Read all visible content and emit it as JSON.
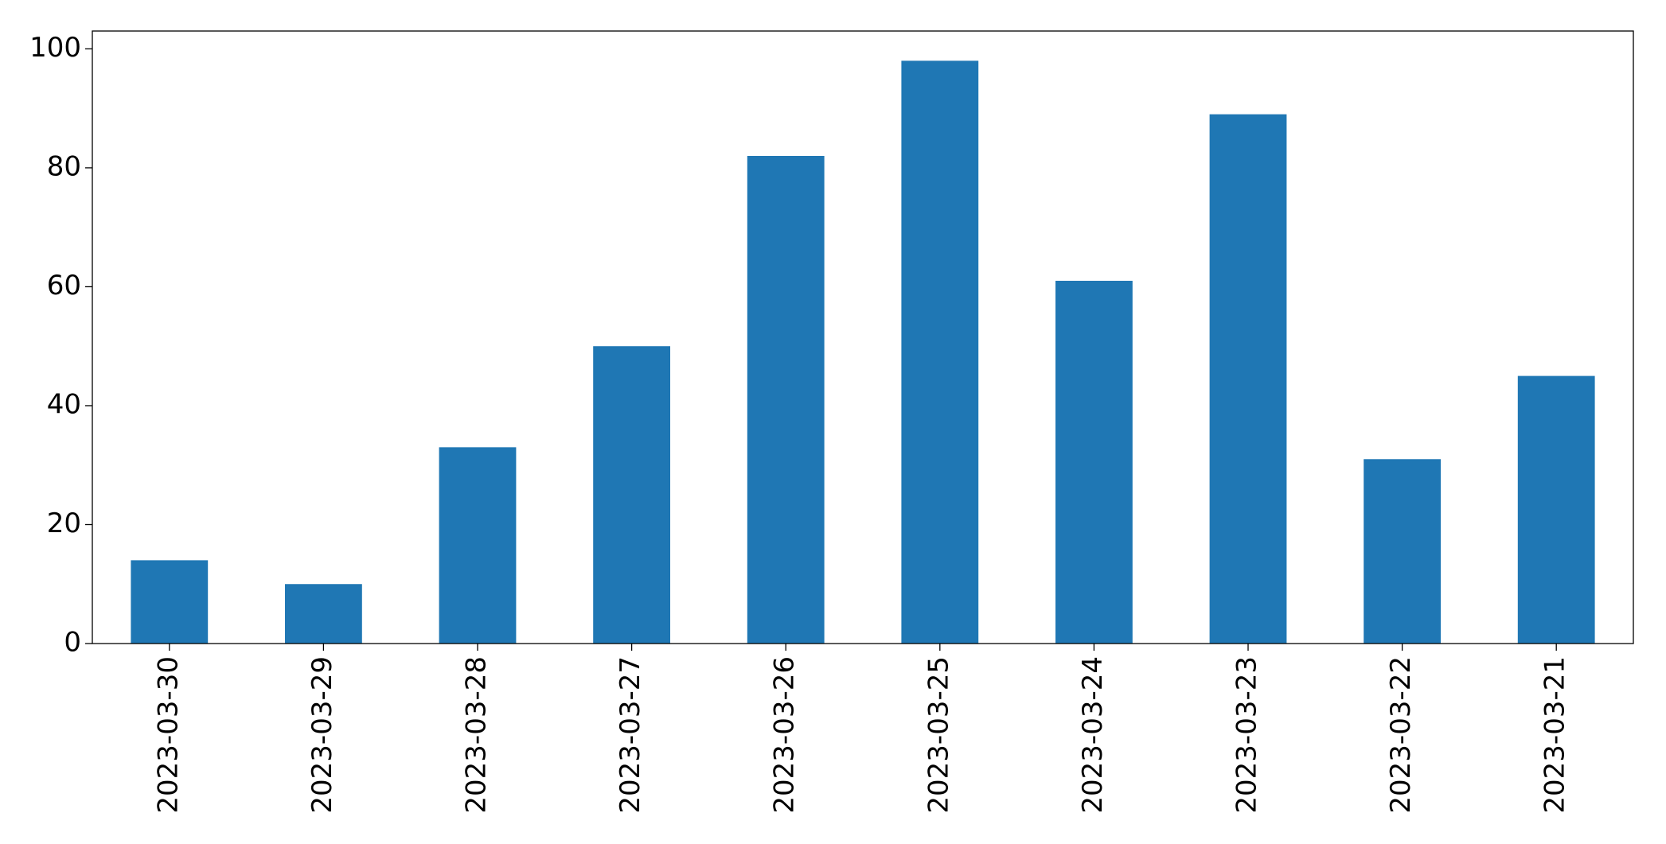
{
  "chart_data": {
    "type": "bar",
    "categories": [
      "2023-03-30",
      "2023-03-29",
      "2023-03-28",
      "2023-03-27",
      "2023-03-26",
      "2023-03-25",
      "2023-03-24",
      "2023-03-23",
      "2023-03-22",
      "2023-03-21"
    ],
    "values": [
      14,
      10,
      33,
      50,
      82,
      98,
      61,
      89,
      31,
      45
    ],
    "color": "#1f77b4",
    "ylim": [
      0,
      103
    ],
    "yticks": [
      0,
      20,
      40,
      60,
      80,
      100
    ],
    "grid": false
  }
}
